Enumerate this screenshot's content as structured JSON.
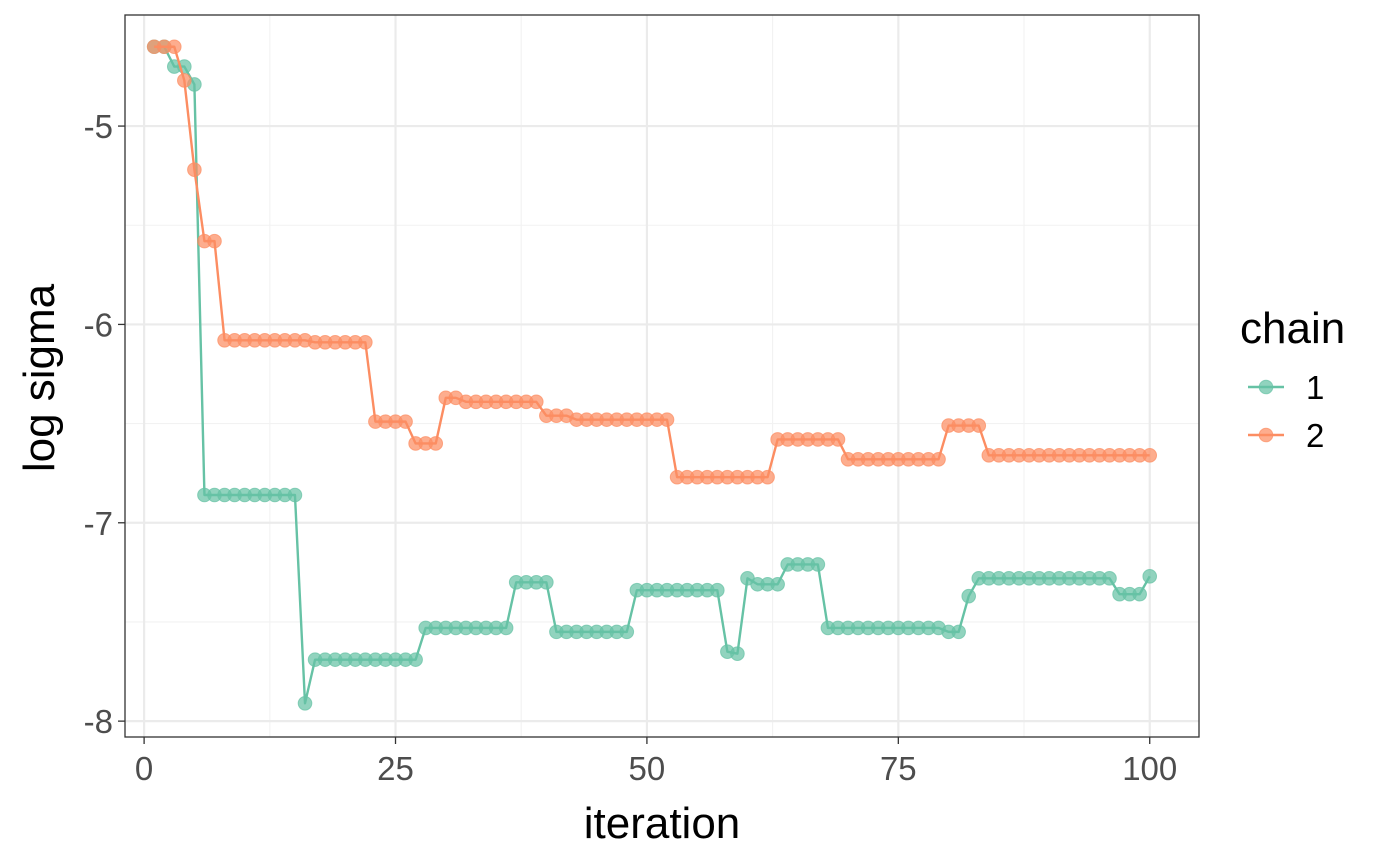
{
  "chart_data": {
    "type": "line",
    "title": "",
    "xlabel": "iteration",
    "ylabel": "log sigma",
    "xlim": [
      -1.9,
      104.9
    ],
    "ylim": [
      -8.08,
      -4.44
    ],
    "x_ticks": [
      0,
      25,
      50,
      75,
      100
    ],
    "x_tick_labels": [
      "0",
      "25",
      "50",
      "75",
      "100"
    ],
    "y_ticks": [
      -8,
      -7,
      -6,
      -5
    ],
    "y_tick_labels": [
      "-8",
      "-7",
      "-6",
      "-5"
    ],
    "grid": true,
    "legend": {
      "title": "chain",
      "position": "right",
      "entries": [
        "1",
        "2"
      ]
    },
    "x": [
      1,
      2,
      3,
      4,
      5,
      6,
      7,
      8,
      9,
      10,
      11,
      12,
      13,
      14,
      15,
      16,
      17,
      18,
      19,
      20,
      21,
      22,
      23,
      24,
      25,
      26,
      27,
      28,
      29,
      30,
      31,
      32,
      33,
      34,
      35,
      36,
      37,
      38,
      39,
      40,
      41,
      42,
      43,
      44,
      45,
      46,
      47,
      48,
      49,
      50,
      51,
      52,
      53,
      54,
      55,
      56,
      57,
      58,
      59,
      60,
      61,
      62,
      63,
      64,
      65,
      66,
      67,
      68,
      69,
      70,
      71,
      72,
      73,
      74,
      75,
      76,
      77,
      78,
      79,
      80,
      81,
      82,
      83,
      84,
      85,
      86,
      87,
      88,
      89,
      90,
      91,
      92,
      93,
      94,
      95,
      96,
      97,
      98,
      99,
      100
    ],
    "series": [
      {
        "name": "1",
        "color": "#66c2a5",
        "values": [
          -4.6,
          -4.6,
          -4.7,
          -4.7,
          -4.79,
          -6.86,
          -6.86,
          -6.86,
          -6.86,
          -6.86,
          -6.86,
          -6.86,
          -6.86,
          -6.86,
          -6.86,
          -7.91,
          -7.69,
          -7.69,
          -7.69,
          -7.69,
          -7.69,
          -7.69,
          -7.69,
          -7.69,
          -7.69,
          -7.69,
          -7.69,
          -7.53,
          -7.53,
          -7.53,
          -7.53,
          -7.53,
          -7.53,
          -7.53,
          -7.53,
          -7.53,
          -7.3,
          -7.3,
          -7.3,
          -7.3,
          -7.55,
          -7.55,
          -7.55,
          -7.55,
          -7.55,
          -7.55,
          -7.55,
          -7.55,
          -7.34,
          -7.34,
          -7.34,
          -7.34,
          -7.34,
          -7.34,
          -7.34,
          -7.34,
          -7.34,
          -7.65,
          -7.66,
          -7.28,
          -7.31,
          -7.31,
          -7.31,
          -7.21,
          -7.21,
          -7.21,
          -7.21,
          -7.53,
          -7.53,
          -7.53,
          -7.53,
          -7.53,
          -7.53,
          -7.53,
          -7.53,
          -7.53,
          -7.53,
          -7.53,
          -7.53,
          -7.55,
          -7.55,
          -7.37,
          -7.28,
          -7.28,
          -7.28,
          -7.28,
          -7.28,
          -7.28,
          -7.28,
          -7.28,
          -7.28,
          -7.28,
          -7.28,
          -7.28,
          -7.28,
          -7.28,
          -7.36,
          -7.36,
          -7.36,
          -7.27
        ]
      },
      {
        "name": "2",
        "color": "#fc8d62",
        "values": [
          -4.6,
          -4.6,
          -4.6,
          -4.77,
          -5.22,
          -5.58,
          -5.58,
          -6.08,
          -6.08,
          -6.08,
          -6.08,
          -6.08,
          -6.08,
          -6.08,
          -6.08,
          -6.08,
          -6.09,
          -6.09,
          -6.09,
          -6.09,
          -6.09,
          -6.09,
          -6.49,
          -6.49,
          -6.49,
          -6.49,
          -6.6,
          -6.6,
          -6.6,
          -6.37,
          -6.37,
          -6.39,
          -6.39,
          -6.39,
          -6.39,
          -6.39,
          -6.39,
          -6.39,
          -6.39,
          -6.46,
          -6.46,
          -6.46,
          -6.48,
          -6.48,
          -6.48,
          -6.48,
          -6.48,
          -6.48,
          -6.48,
          -6.48,
          -6.48,
          -6.48,
          -6.77,
          -6.77,
          -6.77,
          -6.77,
          -6.77,
          -6.77,
          -6.77,
          -6.77,
          -6.77,
          -6.77,
          -6.58,
          -6.58,
          -6.58,
          -6.58,
          -6.58,
          -6.58,
          -6.58,
          -6.68,
          -6.68,
          -6.68,
          -6.68,
          -6.68,
          -6.68,
          -6.68,
          -6.68,
          -6.68,
          -6.68,
          -6.51,
          -6.51,
          -6.51,
          -6.51,
          -6.66,
          -6.66,
          -6.66,
          -6.66,
          -6.66,
          -6.66,
          -6.66,
          -6.66,
          -6.66,
          -6.66,
          -6.66,
          -6.66,
          -6.66,
          -6.66,
          -6.66,
          -6.66,
          -6.66
        ]
      }
    ]
  }
}
